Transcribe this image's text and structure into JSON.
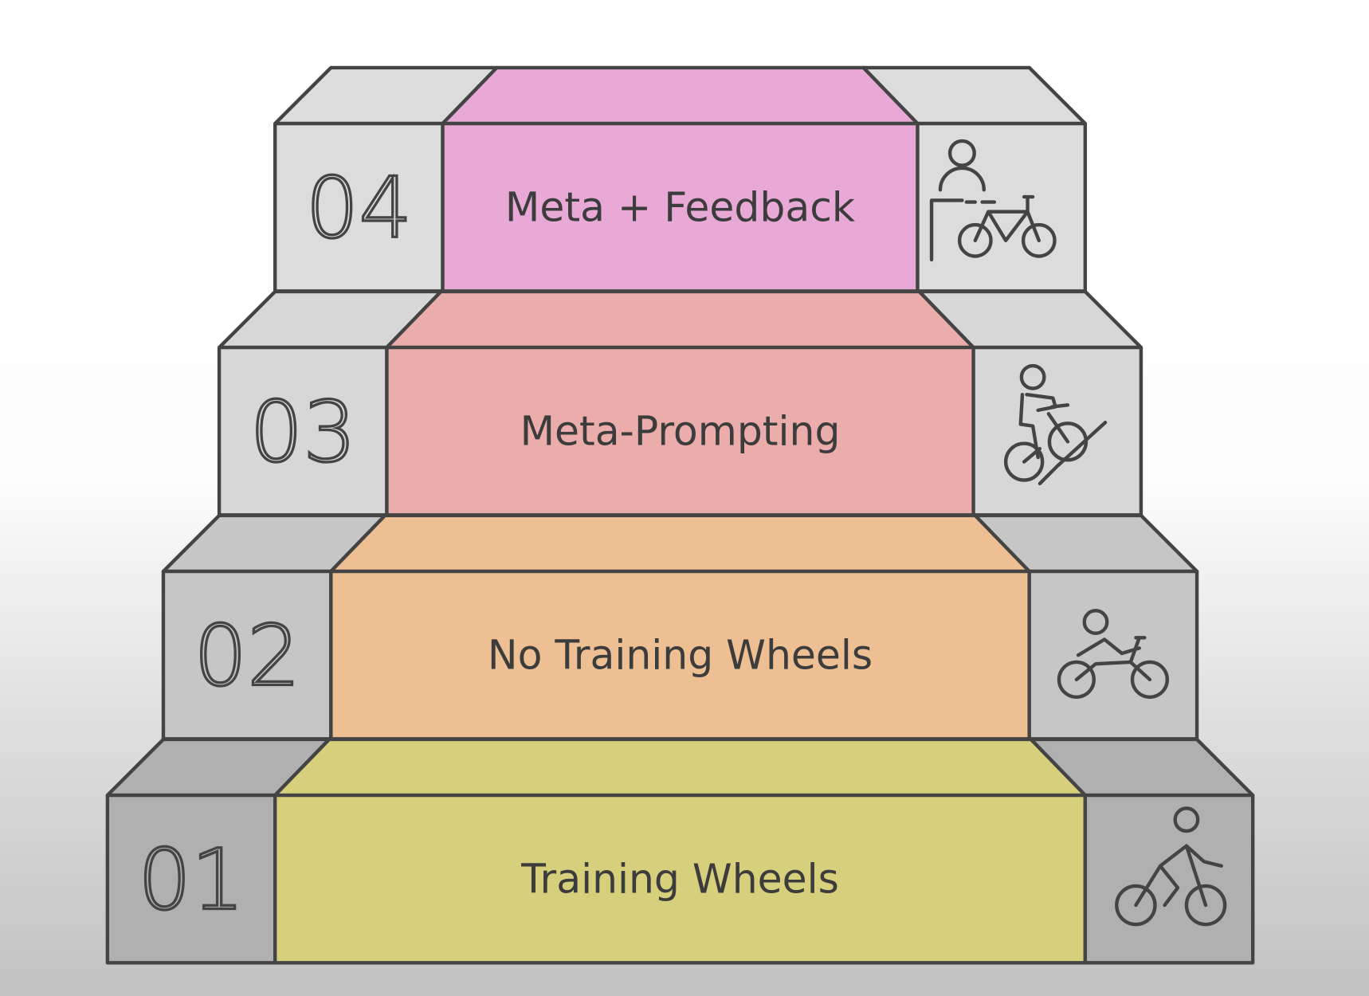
{
  "steps": [
    {
      "number": "01",
      "label": "Training Wheels",
      "color": "#d6d07c",
      "side_color": "#b0b0b0",
      "icon": "cyclist-icon"
    },
    {
      "number": "02",
      "label": "No Training Wheels",
      "color": "#edbf92",
      "side_color": "#c6c6c6",
      "icon": "reclined-cyclist-icon"
    },
    {
      "number": "03",
      "label": "Meta-Prompting",
      "color": "#ebadab",
      "side_color": "#d7d7d7",
      "icon": "uphill-cyclist-icon"
    },
    {
      "number": "04",
      "label": "Meta + Feedback",
      "color": "#e8a9d6",
      "side_color": "#dcdcdc",
      "icon": "person-with-bicycle-icon"
    }
  ],
  "stroke_color": "#444444"
}
